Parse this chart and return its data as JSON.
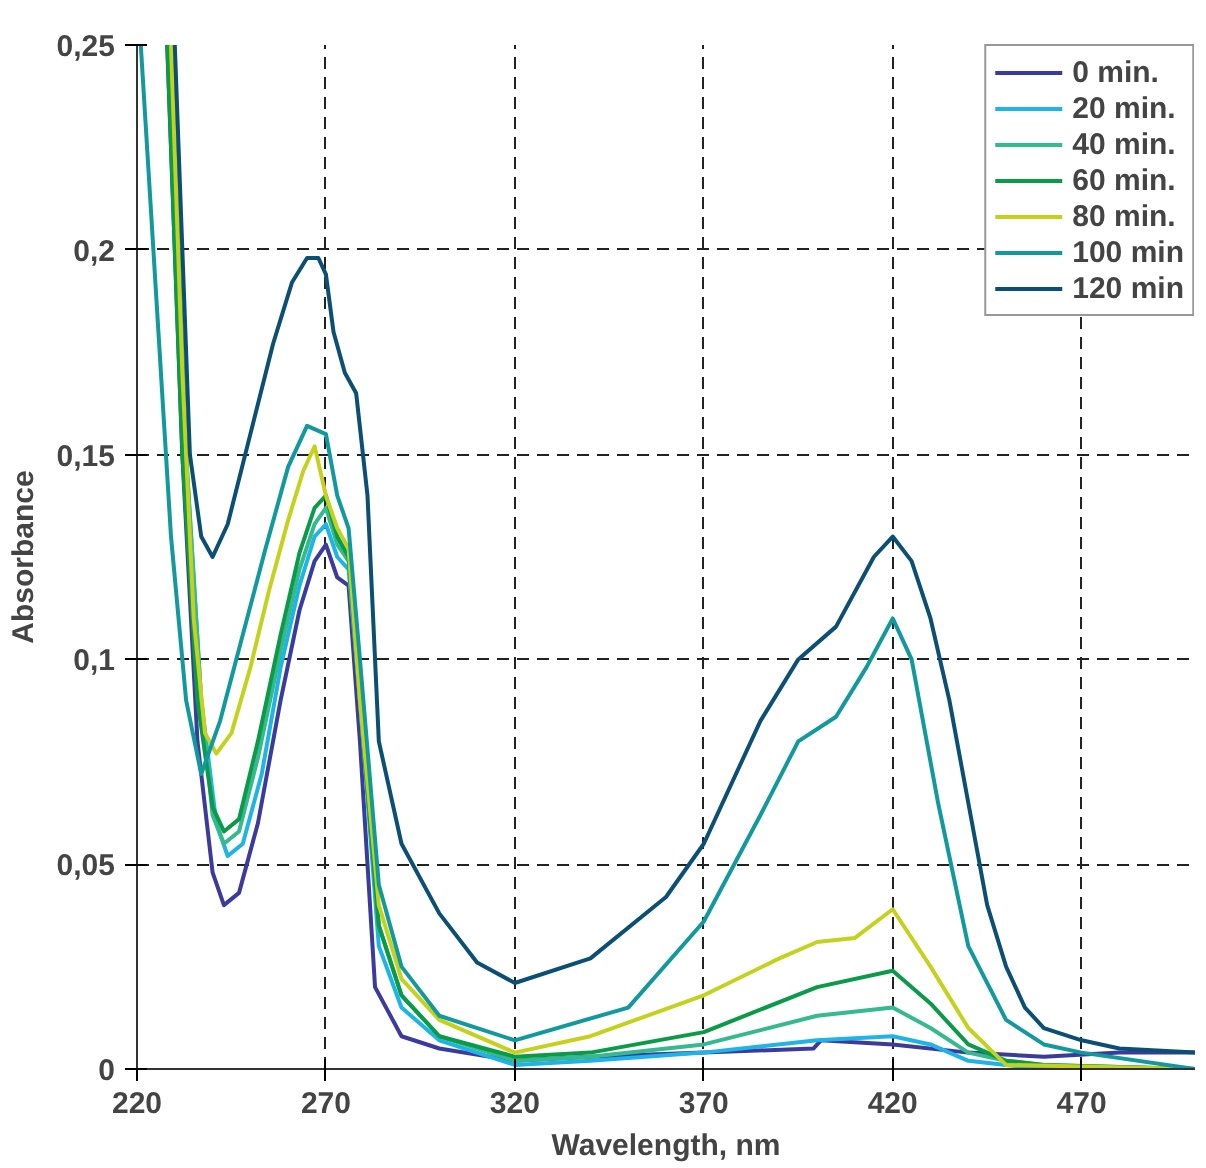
{
  "chart_data": {
    "type": "line",
    "xlabel": "Wavelength, nm",
    "ylabel": "Absorbance",
    "xlim": [
      220,
      500
    ],
    "ylim": [
      0,
      0.25
    ],
    "xticks": [
      220,
      270,
      320,
      370,
      420,
      470
    ],
    "yticks": [
      {
        "value": 0,
        "label": "0"
      },
      {
        "value": 0.05,
        "label": "0,05"
      },
      {
        "value": 0.1,
        "label": "0,1"
      },
      {
        "value": 0.15,
        "label": "0,15"
      },
      {
        "value": 0.2,
        "label": "0,2"
      },
      {
        "value": 0.25,
        "label": "0,25"
      }
    ],
    "grid": true,
    "legend": "top right",
    "line_style": "solid",
    "series": [
      {
        "name": "0 min.",
        "color": "#3b3b9e",
        "x": [
          228,
          232,
          236,
          240,
          243,
          247,
          252,
          258,
          263,
          267,
          270,
          273,
          276,
          279,
          283,
          290,
          300,
          320,
          340,
          370,
          399,
          401,
          420,
          440,
          460,
          480,
          500
        ],
        "values": [
          0.25,
          0.15,
          0.08,
          0.048,
          0.04,
          0.043,
          0.06,
          0.09,
          0.112,
          0.124,
          0.128,
          0.12,
          0.118,
          0.08,
          0.02,
          0.008,
          0.005,
          0.002,
          0.003,
          0.004,
          0.005,
          0.007,
          0.006,
          0.004,
          0.003,
          0.004,
          0.004
        ]
      },
      {
        "name": "20 min.",
        "color": "#1eb4e6",
        "x": [
          229,
          233,
          237,
          241,
          244,
          248,
          253,
          258,
          263,
          267,
          270,
          273,
          276,
          279,
          284,
          290,
          300,
          320,
          340,
          370,
          400,
          420,
          430,
          440,
          450,
          460,
          500
        ],
        "values": [
          0.25,
          0.15,
          0.09,
          0.06,
          0.052,
          0.055,
          0.072,
          0.098,
          0.118,
          0.13,
          0.133,
          0.125,
          0.122,
          0.09,
          0.03,
          0.015,
          0.007,
          0.001,
          0.002,
          0.004,
          0.007,
          0.008,
          0.006,
          0.002,
          0.001,
          0,
          0
        ]
      },
      {
        "name": "40 min.",
        "color": "#35b98e",
        "x": [
          229,
          233,
          237,
          240,
          243,
          247,
          252,
          258,
          263,
          267,
          270,
          273,
          276,
          279,
          284,
          290,
          300,
          320,
          340,
          370,
          400,
          420,
          430,
          440,
          450,
          460,
          500
        ],
        "values": [
          0.25,
          0.15,
          0.09,
          0.062,
          0.055,
          0.058,
          0.076,
          0.102,
          0.122,
          0.133,
          0.137,
          0.128,
          0.124,
          0.09,
          0.035,
          0.018,
          0.008,
          0.002,
          0.003,
          0.006,
          0.013,
          0.015,
          0.01,
          0.004,
          0.002,
          0.001,
          0
        ]
      },
      {
        "name": "60 min.",
        "color": "#0a9a48",
        "x": [
          228,
          232,
          236,
          240,
          243,
          247,
          252,
          258,
          263,
          267,
          270,
          273,
          276,
          279,
          284,
          290,
          300,
          320,
          340,
          370,
          400,
          420,
          430,
          440,
          450,
          460,
          500
        ],
        "values": [
          0.25,
          0.15,
          0.09,
          0.064,
          0.058,
          0.061,
          0.08,
          0.106,
          0.126,
          0.137,
          0.14,
          0.13,
          0.125,
          0.09,
          0.035,
          0.018,
          0.008,
          0.003,
          0.004,
          0.009,
          0.02,
          0.024,
          0.016,
          0.006,
          0.002,
          0.001,
          0
        ]
      },
      {
        "name": "80 min.",
        "color": "#c4d21e",
        "x": [
          229,
          232,
          235,
          238,
          241,
          245,
          250,
          255,
          260,
          264,
          267,
          270,
          273,
          276,
          279,
          284,
          290,
          300,
          320,
          340,
          370,
          390,
          400,
          410,
          420,
          430,
          440,
          450,
          500
        ],
        "values": [
          0.25,
          0.17,
          0.11,
          0.082,
          0.077,
          0.082,
          0.098,
          0.117,
          0.134,
          0.146,
          0.152,
          0.14,
          0.132,
          0.127,
          0.09,
          0.04,
          0.022,
          0.012,
          0.004,
          0.008,
          0.018,
          0.027,
          0.031,
          0.032,
          0.039,
          0.025,
          0.01,
          0.001,
          0
        ]
      },
      {
        "name": "100 min",
        "color": "#11999e",
        "x": [
          221,
          225,
          229,
          233,
          237,
          242,
          248,
          254,
          260,
          265,
          270,
          273,
          276,
          279,
          284,
          290,
          300,
          320,
          350,
          370,
          385,
          395,
          405,
          413,
          420,
          425,
          432,
          440,
          450,
          460,
          470,
          500
        ],
        "values": [
          0.25,
          0.19,
          0.13,
          0.09,
          0.072,
          0.085,
          0.106,
          0.127,
          0.147,
          0.157,
          0.155,
          0.14,
          0.132,
          0.1,
          0.045,
          0.025,
          0.013,
          0.007,
          0.015,
          0.036,
          0.062,
          0.08,
          0.086,
          0.098,
          0.11,
          0.1,
          0.065,
          0.03,
          0.012,
          0.006,
          0.004,
          0
        ]
      },
      {
        "name": "120 min",
        "color": "#0b4f74",
        "x": [
          230,
          232,
          234,
          237,
          240,
          244,
          250,
          256,
          261,
          265,
          268,
          270,
          272,
          275,
          278,
          281,
          284,
          290,
          300,
          310,
          320,
          340,
          360,
          370,
          385,
          395,
          405,
          415,
          420,
          425,
          430,
          435,
          440,
          445,
          450,
          455,
          460,
          470,
          480,
          500
        ],
        "values": [
          0.25,
          0.2,
          0.15,
          0.13,
          0.125,
          0.133,
          0.155,
          0.177,
          0.192,
          0.198,
          0.198,
          0.194,
          0.18,
          0.17,
          0.165,
          0.14,
          0.08,
          0.055,
          0.038,
          0.026,
          0.021,
          0.027,
          0.042,
          0.055,
          0.085,
          0.1,
          0.108,
          0.125,
          0.13,
          0.124,
          0.11,
          0.09,
          0.065,
          0.04,
          0.025,
          0.015,
          0.01,
          0.007,
          0.005,
          0.004
        ]
      }
    ]
  }
}
